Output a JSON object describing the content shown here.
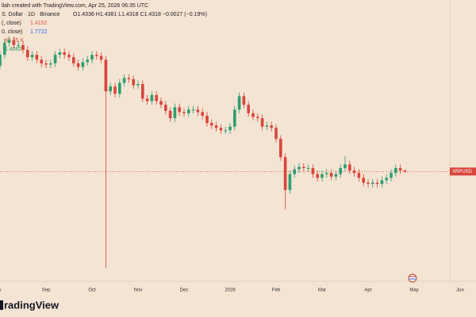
{
  "chart_data": {
    "type": "candlestick",
    "header": "llah created with TradingView.com, Apr 25, 2026 06:35 UTC",
    "symbol": "S. Dollar · 1D · Binance",
    "ohlc_text": "O1.4336 H1.4381 L1.4318 C1.4318 −0.0027 (−0.19%)",
    "indicators": [
      {
        "label": "(, close)",
        "value": "1.4152",
        "color": "#e0533f"
      },
      {
        "label": "0, close)",
        "value": "1.7722",
        "color": "#2962ff"
      },
      {
        "label": "",
        "value": "80.75 K",
        "color": "#e0533f"
      },
      {
        "label": "",
        "value": "1.4062",
        "color": "#2e9e6e"
      }
    ],
    "symbol_tag": "XRPUSD",
    "last_price": 1.4318,
    "brand": "radingView",
    "up_color": "#2e9e6e",
    "down_color": "#d9453b",
    "ylim": [
      0.53,
      2.84
    ],
    "categories": [
      "y",
      null,
      null,
      null,
      null,
      null,
      null,
      null,
      null,
      null,
      "Sep",
      null,
      null,
      null,
      null,
      null,
      null,
      null,
      null,
      null,
      "Oct",
      null,
      null,
      null,
      null,
      null,
      null,
      null,
      null,
      null,
      "Nov",
      null,
      null,
      null,
      null,
      null,
      null,
      null,
      null,
      null,
      "Dec",
      null,
      null,
      null,
      null,
      null,
      null,
      null,
      null,
      null,
      "2026",
      null,
      null,
      null,
      null,
      null,
      null,
      null,
      null,
      null,
      "Feb",
      null,
      null,
      null,
      null,
      null,
      null,
      null,
      null,
      null,
      "Mar",
      null,
      null,
      null,
      null,
      null,
      null,
      null,
      null,
      null,
      "Apr",
      null,
      null,
      null,
      null,
      null,
      null,
      null,
      null,
      null,
      "May",
      null,
      null,
      null,
      null,
      null,
      null,
      null,
      null,
      null,
      "Jun"
    ],
    "open": [
      2.3,
      2.39,
      2.49,
      2.51,
      2.47,
      2.47,
      2.43,
      2.37,
      2.39,
      2.35,
      2.32,
      2.31,
      2.32,
      2.39,
      2.41,
      2.39,
      2.37,
      2.32,
      2.29,
      2.33,
      2.35,
      2.39,
      2.38,
      2.35,
      2.09,
      2.13,
      2.07,
      2.16,
      2.2,
      2.19,
      2.14,
      2.15,
      2.03,
      2.01,
      2.06,
      2.01,
      1.98,
      1.93,
      1.87,
      1.96,
      1.92,
      1.91,
      1.94,
      1.94,
      1.92,
      1.89,
      1.83,
      1.81,
      1.79,
      1.77,
      1.77,
      1.8,
      1.94,
      2.05,
      1.98,
      1.91,
      1.88,
      1.87,
      1.8,
      1.81,
      1.79,
      1.7,
      1.55,
      1.28,
      1.41,
      1.45,
      1.47,
      1.46,
      1.46,
      1.41,
      1.38,
      1.41,
      1.42,
      1.39,
      1.41,
      1.46,
      1.49,
      1.44,
      1.42,
      1.38,
      1.34,
      1.33,
      1.34,
      1.33,
      1.36,
      1.38,
      1.42,
      1.46,
      1.44,
      null,
      null,
      null,
      null,
      null,
      null,
      null,
      null,
      null,
      null,
      null,
      null
    ],
    "high": [
      2.42,
      2.52,
      2.54,
      2.54,
      2.5,
      2.5,
      2.46,
      2.42,
      2.42,
      2.38,
      2.35,
      2.35,
      2.42,
      2.44,
      2.44,
      2.42,
      2.4,
      2.35,
      2.36,
      2.38,
      2.42,
      2.42,
      2.41,
      2.38,
      2.16,
      2.16,
      2.19,
      2.23,
      2.23,
      2.22,
      2.18,
      2.18,
      2.06,
      2.09,
      2.09,
      2.04,
      2.01,
      1.96,
      1.99,
      1.99,
      1.95,
      1.97,
      1.97,
      1.97,
      1.95,
      1.92,
      1.86,
      1.84,
      1.82,
      1.8,
      1.83,
      1.97,
      2.08,
      2.08,
      2.01,
      1.94,
      1.91,
      1.9,
      1.84,
      1.84,
      1.82,
      1.73,
      1.58,
      1.44,
      1.48,
      1.5,
      1.5,
      1.49,
      1.49,
      1.44,
      1.44,
      1.45,
      1.45,
      1.44,
      1.49,
      1.56,
      1.52,
      1.47,
      1.45,
      1.41,
      1.37,
      1.37,
      1.37,
      1.39,
      1.41,
      1.45,
      1.49,
      1.49,
      1.45,
      null,
      null,
      null,
      null,
      null,
      null,
      null,
      null,
      null,
      null,
      null,
      null
    ],
    "low": [
      2.27,
      2.36,
      2.46,
      2.44,
      2.44,
      2.4,
      2.34,
      2.34,
      2.32,
      2.29,
      2.28,
      2.28,
      2.29,
      2.36,
      2.36,
      2.34,
      2.29,
      2.26,
      2.26,
      2.3,
      2.32,
      2.35,
      2.32,
      0.64,
      2.06,
      2.04,
      2.04,
      2.13,
      2.16,
      2.11,
      2.11,
      2.0,
      1.98,
      1.98,
      1.98,
      1.95,
      1.9,
      1.84,
      1.84,
      1.89,
      1.88,
      1.88,
      1.91,
      1.89,
      1.86,
      1.8,
      1.78,
      1.76,
      1.74,
      1.74,
      1.74,
      1.77,
      1.91,
      1.95,
      1.88,
      1.85,
      1.84,
      1.77,
      1.77,
      1.76,
      1.67,
      1.52,
      1.12,
      1.25,
      1.38,
      1.42,
      1.43,
      1.43,
      1.38,
      1.35,
      1.35,
      1.38,
      1.36,
      1.36,
      1.38,
      1.43,
      1.41,
      1.39,
      1.35,
      1.31,
      1.3,
      1.3,
      1.3,
      1.3,
      1.33,
      1.35,
      1.39,
      1.41,
      1.42,
      null,
      null,
      null,
      null,
      null,
      null,
      null,
      null,
      null,
      null,
      null,
      null
    ],
    "close": [
      2.39,
      2.49,
      2.51,
      2.47,
      2.47,
      2.43,
      2.37,
      2.39,
      2.35,
      2.32,
      2.31,
      2.32,
      2.39,
      2.41,
      2.39,
      2.37,
      2.32,
      2.29,
      2.33,
      2.35,
      2.39,
      2.38,
      2.35,
      2.09,
      2.13,
      2.07,
      2.16,
      2.2,
      2.19,
      2.14,
      2.15,
      2.03,
      2.01,
      2.06,
      2.01,
      1.98,
      1.93,
      1.87,
      1.96,
      1.92,
      1.91,
      1.94,
      1.94,
      1.92,
      1.89,
      1.83,
      1.81,
      1.79,
      1.77,
      1.77,
      1.8,
      1.94,
      2.05,
      1.98,
      1.91,
      1.88,
      1.87,
      1.8,
      1.81,
      1.79,
      1.7,
      1.55,
      1.28,
      1.41,
      1.45,
      1.47,
      1.46,
      1.46,
      1.41,
      1.38,
      1.41,
      1.42,
      1.39,
      1.41,
      1.46,
      1.49,
      1.44,
      1.42,
      1.38,
      1.34,
      1.33,
      1.34,
      1.33,
      1.36,
      1.38,
      1.42,
      1.46,
      1.44,
      1.43,
      null,
      null,
      null,
      null,
      null,
      null,
      null,
      null,
      null,
      null,
      null,
      null
    ]
  }
}
